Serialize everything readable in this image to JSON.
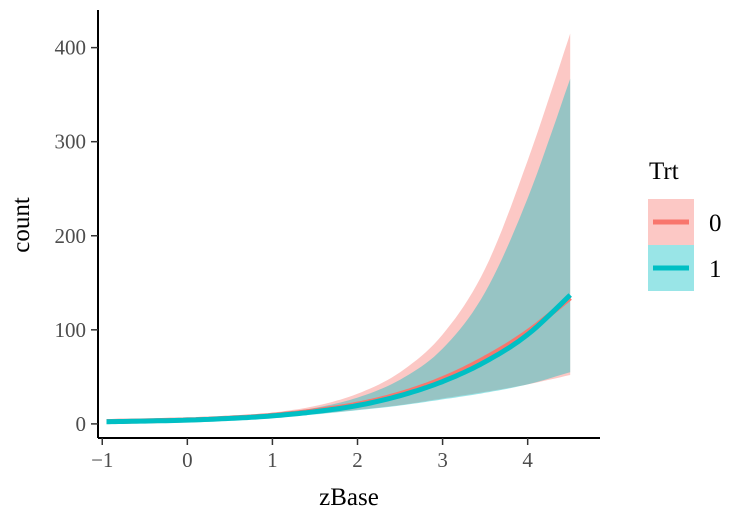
{
  "chart_data": {
    "type": "area",
    "title": "",
    "xlabel": "zBase",
    "ylabel": "count",
    "xlim": [
      -1.05,
      4.85
    ],
    "ylim": [
      -15,
      440
    ],
    "x_ticks": [
      -1,
      0,
      1,
      2,
      3,
      4
    ],
    "x_tick_labels": [
      "−1",
      "0",
      "1",
      "2",
      "3",
      "4"
    ],
    "y_ticks": [
      0,
      100,
      200,
      300,
      400
    ],
    "y_tick_labels": [
      "0",
      "100",
      "200",
      "300",
      "400"
    ],
    "grid": false,
    "legend": {
      "title": "Trt",
      "position": "right",
      "entries": [
        "0",
        "1"
      ]
    },
    "x": [
      -0.95,
      -0.5,
      0,
      0.5,
      1,
      1.5,
      2,
      2.5,
      3,
      3.5,
      4,
      4.5
    ],
    "series": [
      {
        "name": "0",
        "color": "#F8766D",
        "fill": "#F8766D",
        "fit": [
          2.5,
          3.2,
          4.3,
          6.2,
          9.1,
          14,
          21,
          32,
          48,
          70,
          98,
          134
        ],
        "lower": [
          1.8,
          2.5,
          3.5,
          5.0,
          7.2,
          10.5,
          15,
          20,
          27,
          34,
          42,
          52
        ],
        "upper": [
          3.5,
          4.4,
          5.8,
          8.0,
          12,
          19,
          32,
          55,
          95,
          165,
          280,
          415
        ]
      },
      {
        "name": "1",
        "color": "#00BFC4",
        "fill": "#00BFC4",
        "fit": [
          2.3,
          3.0,
          4.0,
          5.8,
          8.5,
          13,
          19.5,
          30,
          45,
          66,
          95,
          137
        ],
        "lower": [
          1.7,
          2.3,
          3.2,
          4.7,
          6.8,
          10,
          14.5,
          19.5,
          26,
          33,
          42,
          55
        ],
        "upper": [
          3.2,
          4.0,
          5.2,
          7.2,
          11,
          17,
          28,
          47,
          80,
          140,
          240,
          367
        ]
      }
    ]
  }
}
